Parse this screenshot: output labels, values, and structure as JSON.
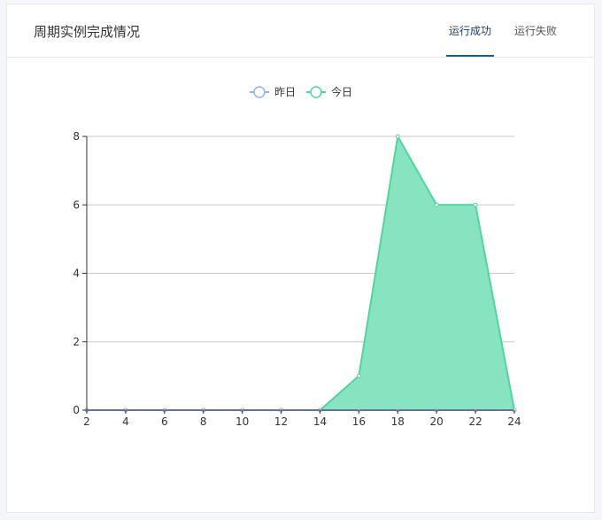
{
  "card": {
    "title": "周期实例完成情况",
    "tabs": [
      {
        "label": "运行成功",
        "active": true
      },
      {
        "label": "运行失败",
        "active": false
      }
    ]
  },
  "chart_data": {
    "type": "area",
    "x": [
      2,
      4,
      6,
      8,
      10,
      12,
      14,
      16,
      18,
      20,
      22,
      24
    ],
    "series": [
      {
        "name": "昨日",
        "values": [
          0,
          0,
          0,
          0,
          0,
          0,
          0,
          0,
          0,
          0,
          0,
          0
        ],
        "color": "#92b4f0"
      },
      {
        "name": "今日",
        "values": [
          0,
          0,
          0,
          0,
          0,
          0,
          0,
          1,
          8,
          6,
          6,
          0
        ],
        "color": "#4fd69c",
        "fill": "#88e3c1"
      }
    ],
    "xlim": [
      2,
      24
    ],
    "ylim": [
      0,
      8
    ],
    "yticks": [
      0,
      2,
      4,
      6,
      8
    ],
    "grid": true,
    "legend": "top-center"
  }
}
